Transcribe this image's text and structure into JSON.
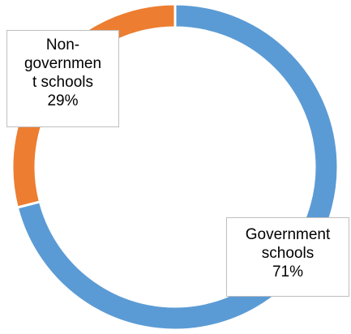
{
  "chart_data": {
    "type": "donut",
    "title": "",
    "slices": [
      {
        "label": "Government schools",
        "value": 71,
        "percent_label": "71%",
        "color": "#5b9bd5"
      },
      {
        "label": "Non-government schools",
        "value": 29,
        "percent_label": "29%",
        "color": "#ed7d31"
      }
    ],
    "data_labels": {
      "nongov": {
        "line1": "Non-",
        "line2": "governmen",
        "line3": "t schools",
        "pct": "29%"
      },
      "gov": {
        "line1": "Government",
        "line2": "schools",
        "pct": "71%"
      }
    },
    "legend": "none"
  }
}
